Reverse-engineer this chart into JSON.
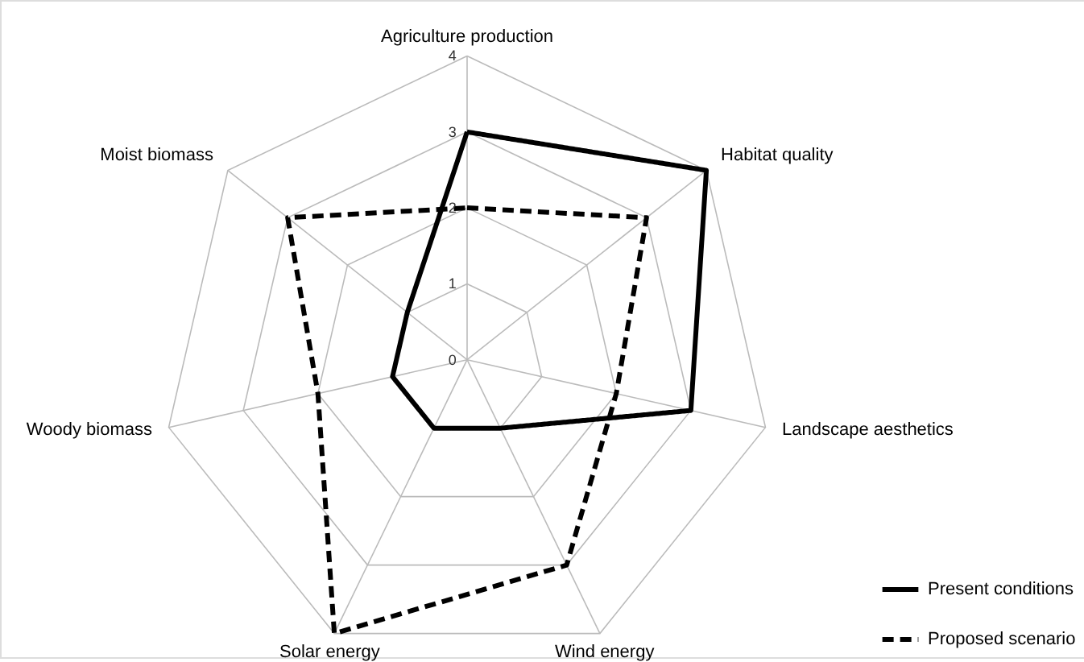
{
  "chart_data": {
    "type": "radar",
    "categories": [
      "Agriculture production",
      "Habitat quality",
      "Landscape aesthetics",
      "Wind energy",
      "Solar energy",
      "Woody biomass",
      "Moist biomass"
    ],
    "series": [
      {
        "name": "Present conditions",
        "color": "#000000",
        "line_style": "solid",
        "values": [
          3,
          4,
          3,
          1,
          1,
          1,
          1
        ]
      },
      {
        "name": "Proposed scenario",
        "color": "#000000",
        "line_style": "dashed",
        "values": [
          2,
          3,
          2,
          3,
          4,
          2,
          3
        ]
      }
    ],
    "ylim": [
      0,
      4
    ],
    "yticks": [
      0,
      1,
      2,
      3,
      4
    ],
    "grid": true,
    "legend": "bottom right",
    "marker": "none"
  }
}
